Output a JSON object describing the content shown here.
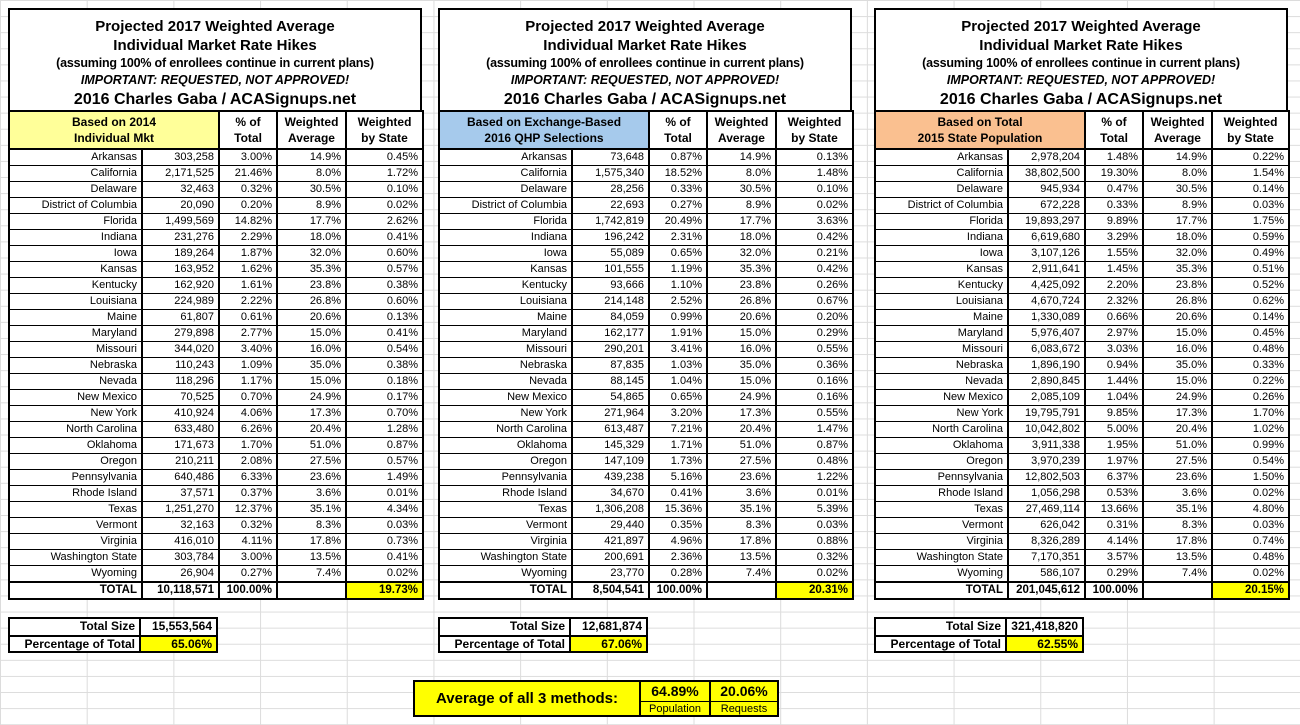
{
  "title": {
    "line1": "Projected 2017 Weighted Average",
    "line2": "Individual Market Rate Hikes",
    "line3": "(assuming 100% of enrollees continue in current plans)",
    "line4": "IMPORTANT: REQUESTED, NOT APPROVED!",
    "line5": "2016 Charles Gaba / ACASignups.net"
  },
  "col_headers": {
    "pct_line1": "% of",
    "pct_line2": "Total",
    "wavg_line1": "Weighted",
    "wavg_line2": "Average",
    "wbys_line1": "Weighted",
    "wbys_line2": "by State"
  },
  "colors": {
    "highlight": "#FFFF00",
    "border": "#000000",
    "gridline": "#DCDCDC"
  },
  "tables": [
    {
      "basis_line1": "Based on 2014",
      "basis_line2": "Individual Mkt",
      "header_fill": "#FFFF99",
      "rows": [
        [
          "Arkansas",
          "303,258",
          "3.00%",
          "14.9%",
          "0.45%"
        ],
        [
          "California",
          "2,171,525",
          "21.46%",
          "8.0%",
          "1.72%"
        ],
        [
          "Delaware",
          "32,463",
          "0.32%",
          "30.5%",
          "0.10%"
        ],
        [
          "District of Columbia",
          "20,090",
          "0.20%",
          "8.9%",
          "0.02%"
        ],
        [
          "Florida",
          "1,499,569",
          "14.82%",
          "17.7%",
          "2.62%"
        ],
        [
          "Indiana",
          "231,276",
          "2.29%",
          "18.0%",
          "0.41%"
        ],
        [
          "Iowa",
          "189,264",
          "1.87%",
          "32.0%",
          "0.60%"
        ],
        [
          "Kansas",
          "163,952",
          "1.62%",
          "35.3%",
          "0.57%"
        ],
        [
          "Kentucky",
          "162,920",
          "1.61%",
          "23.8%",
          "0.38%"
        ],
        [
          "Louisiana",
          "224,989",
          "2.22%",
          "26.8%",
          "0.60%"
        ],
        [
          "Maine",
          "61,807",
          "0.61%",
          "20.6%",
          "0.13%"
        ],
        [
          "Maryland",
          "279,898",
          "2.77%",
          "15.0%",
          "0.41%"
        ],
        [
          "Missouri",
          "344,020",
          "3.40%",
          "16.0%",
          "0.54%"
        ],
        [
          "Nebraska",
          "110,243",
          "1.09%",
          "35.0%",
          "0.38%"
        ],
        [
          "Nevada",
          "118,296",
          "1.17%",
          "15.0%",
          "0.18%"
        ],
        [
          "New Mexico",
          "70,525",
          "0.70%",
          "24.9%",
          "0.17%"
        ],
        [
          "New York",
          "410,924",
          "4.06%",
          "17.3%",
          "0.70%"
        ],
        [
          "North Carolina",
          "633,480",
          "6.26%",
          "20.4%",
          "1.28%"
        ],
        [
          "Oklahoma",
          "171,673",
          "1.70%",
          "51.0%",
          "0.87%"
        ],
        [
          "Oregon",
          "210,211",
          "2.08%",
          "27.5%",
          "0.57%"
        ],
        [
          "Pennsylvania",
          "640,486",
          "6.33%",
          "23.6%",
          "1.49%"
        ],
        [
          "Rhode Island",
          "37,571",
          "0.37%",
          "3.6%",
          "0.01%"
        ],
        [
          "Texas",
          "1,251,270",
          "12.37%",
          "35.1%",
          "4.34%"
        ],
        [
          "Vermont",
          "32,163",
          "0.32%",
          "8.3%",
          "0.03%"
        ],
        [
          "Virginia",
          "416,010",
          "4.11%",
          "17.8%",
          "0.73%"
        ],
        [
          "Washington State",
          "303,784",
          "3.00%",
          "13.5%",
          "0.41%"
        ],
        [
          "Wyoming",
          "26,904",
          "0.27%",
          "7.4%",
          "0.02%"
        ]
      ],
      "total_row": [
        "TOTAL",
        "10,118,571",
        "100.00%",
        "",
        "19.73%"
      ],
      "total_size_label": "Total Size",
      "total_size_value": "15,553,564",
      "pct_total_label": "Percentage of Total",
      "pct_total_value": "65.06%"
    },
    {
      "basis_line1": "Based on Exchange-Based",
      "basis_line2": "2016 QHP Selections",
      "header_fill": "#A6CAEC",
      "rows": [
        [
          "Arkansas",
          "73,648",
          "0.87%",
          "14.9%",
          "0.13%"
        ],
        [
          "California",
          "1,575,340",
          "18.52%",
          "8.0%",
          "1.48%"
        ],
        [
          "Delaware",
          "28,256",
          "0.33%",
          "30.5%",
          "0.10%"
        ],
        [
          "District of Columbia",
          "22,693",
          "0.27%",
          "8.9%",
          "0.02%"
        ],
        [
          "Florida",
          "1,742,819",
          "20.49%",
          "17.7%",
          "3.63%"
        ],
        [
          "Indiana",
          "196,242",
          "2.31%",
          "18.0%",
          "0.42%"
        ],
        [
          "Iowa",
          "55,089",
          "0.65%",
          "32.0%",
          "0.21%"
        ],
        [
          "Kansas",
          "101,555",
          "1.19%",
          "35.3%",
          "0.42%"
        ],
        [
          "Kentucky",
          "93,666",
          "1.10%",
          "23.8%",
          "0.26%"
        ],
        [
          "Louisiana",
          "214,148",
          "2.52%",
          "26.8%",
          "0.67%"
        ],
        [
          "Maine",
          "84,059",
          "0.99%",
          "20.6%",
          "0.20%"
        ],
        [
          "Maryland",
          "162,177",
          "1.91%",
          "15.0%",
          "0.29%"
        ],
        [
          "Missouri",
          "290,201",
          "3.41%",
          "16.0%",
          "0.55%"
        ],
        [
          "Nebraska",
          "87,835",
          "1.03%",
          "35.0%",
          "0.36%"
        ],
        [
          "Nevada",
          "88,145",
          "1.04%",
          "15.0%",
          "0.16%"
        ],
        [
          "New Mexico",
          "54,865",
          "0.65%",
          "24.9%",
          "0.16%"
        ],
        [
          "New York",
          "271,964",
          "3.20%",
          "17.3%",
          "0.55%"
        ],
        [
          "North Carolina",
          "613,487",
          "7.21%",
          "20.4%",
          "1.47%"
        ],
        [
          "Oklahoma",
          "145,329",
          "1.71%",
          "51.0%",
          "0.87%"
        ],
        [
          "Oregon",
          "147,109",
          "1.73%",
          "27.5%",
          "0.48%"
        ],
        [
          "Pennsylvania",
          "439,238",
          "5.16%",
          "23.6%",
          "1.22%"
        ],
        [
          "Rhode Island",
          "34,670",
          "0.41%",
          "3.6%",
          "0.01%"
        ],
        [
          "Texas",
          "1,306,208",
          "15.36%",
          "35.1%",
          "5.39%"
        ],
        [
          "Vermont",
          "29,440",
          "0.35%",
          "8.3%",
          "0.03%"
        ],
        [
          "Virginia",
          "421,897",
          "4.96%",
          "17.8%",
          "0.88%"
        ],
        [
          "Washington State",
          "200,691",
          "2.36%",
          "13.5%",
          "0.32%"
        ],
        [
          "Wyoming",
          "23,770",
          "0.28%",
          "7.4%",
          "0.02%"
        ]
      ],
      "total_row": [
        "TOTAL",
        "8,504,541",
        "100.00%",
        "",
        "20.31%"
      ],
      "total_size_label": "Total Size",
      "total_size_value": "12,681,874",
      "pct_total_label": "Percentage of Total",
      "pct_total_value": "67.06%"
    },
    {
      "basis_line1": "Based on Total",
      "basis_line2": "2015 State Population",
      "header_fill": "#FAC090",
      "rows": [
        [
          "Arkansas",
          "2,978,204",
          "1.48%",
          "14.9%",
          "0.22%"
        ],
        [
          "California",
          "38,802,500",
          "19.30%",
          "8.0%",
          "1.54%"
        ],
        [
          "Delaware",
          "945,934",
          "0.47%",
          "30.5%",
          "0.14%"
        ],
        [
          "District of Columbia",
          "672,228",
          "0.33%",
          "8.9%",
          "0.03%"
        ],
        [
          "Florida",
          "19,893,297",
          "9.89%",
          "17.7%",
          "1.75%"
        ],
        [
          "Indiana",
          "6,619,680",
          "3.29%",
          "18.0%",
          "0.59%"
        ],
        [
          "Iowa",
          "3,107,126",
          "1.55%",
          "32.0%",
          "0.49%"
        ],
        [
          "Kansas",
          "2,911,641",
          "1.45%",
          "35.3%",
          "0.51%"
        ],
        [
          "Kentucky",
          "4,425,092",
          "2.20%",
          "23.8%",
          "0.52%"
        ],
        [
          "Louisiana",
          "4,670,724",
          "2.32%",
          "26.8%",
          "0.62%"
        ],
        [
          "Maine",
          "1,330,089",
          "0.66%",
          "20.6%",
          "0.14%"
        ],
        [
          "Maryland",
          "5,976,407",
          "2.97%",
          "15.0%",
          "0.45%"
        ],
        [
          "Missouri",
          "6,083,672",
          "3.03%",
          "16.0%",
          "0.48%"
        ],
        [
          "Nebraska",
          "1,896,190",
          "0.94%",
          "35.0%",
          "0.33%"
        ],
        [
          "Nevada",
          "2,890,845",
          "1.44%",
          "15.0%",
          "0.22%"
        ],
        [
          "New Mexico",
          "2,085,109",
          "1.04%",
          "24.9%",
          "0.26%"
        ],
        [
          "New York",
          "19,795,791",
          "9.85%",
          "17.3%",
          "1.70%"
        ],
        [
          "North Carolina",
          "10,042,802",
          "5.00%",
          "20.4%",
          "1.02%"
        ],
        [
          "Oklahoma",
          "3,911,338",
          "1.95%",
          "51.0%",
          "0.99%"
        ],
        [
          "Oregon",
          "3,970,239",
          "1.97%",
          "27.5%",
          "0.54%"
        ],
        [
          "Pennsylvania",
          "12,802,503",
          "6.37%",
          "23.6%",
          "1.50%"
        ],
        [
          "Rhode Island",
          "1,056,298",
          "0.53%",
          "3.6%",
          "0.02%"
        ],
        [
          "Texas",
          "27,469,114",
          "13.66%",
          "35.1%",
          "4.80%"
        ],
        [
          "Vermont",
          "626,042",
          "0.31%",
          "8.3%",
          "0.03%"
        ],
        [
          "Virginia",
          "8,326,289",
          "4.14%",
          "17.8%",
          "0.74%"
        ],
        [
          "Washington State",
          "7,170,351",
          "3.57%",
          "13.5%",
          "0.48%"
        ],
        [
          "Wyoming",
          "586,107",
          "0.29%",
          "7.4%",
          "0.02%"
        ]
      ],
      "total_row": [
        "TOTAL",
        "201,045,612",
        "100.00%",
        "",
        "20.15%"
      ],
      "total_size_label": "Total Size",
      "total_size_value": "321,418,820",
      "pct_total_label": "Percentage of Total",
      "pct_total_value": "62.55%"
    }
  ],
  "footer": {
    "label": "Average of all 3 methods:",
    "population_value": "64.89%",
    "population_label": "Population",
    "requests_value": "20.06%",
    "requests_label": "Requests"
  }
}
